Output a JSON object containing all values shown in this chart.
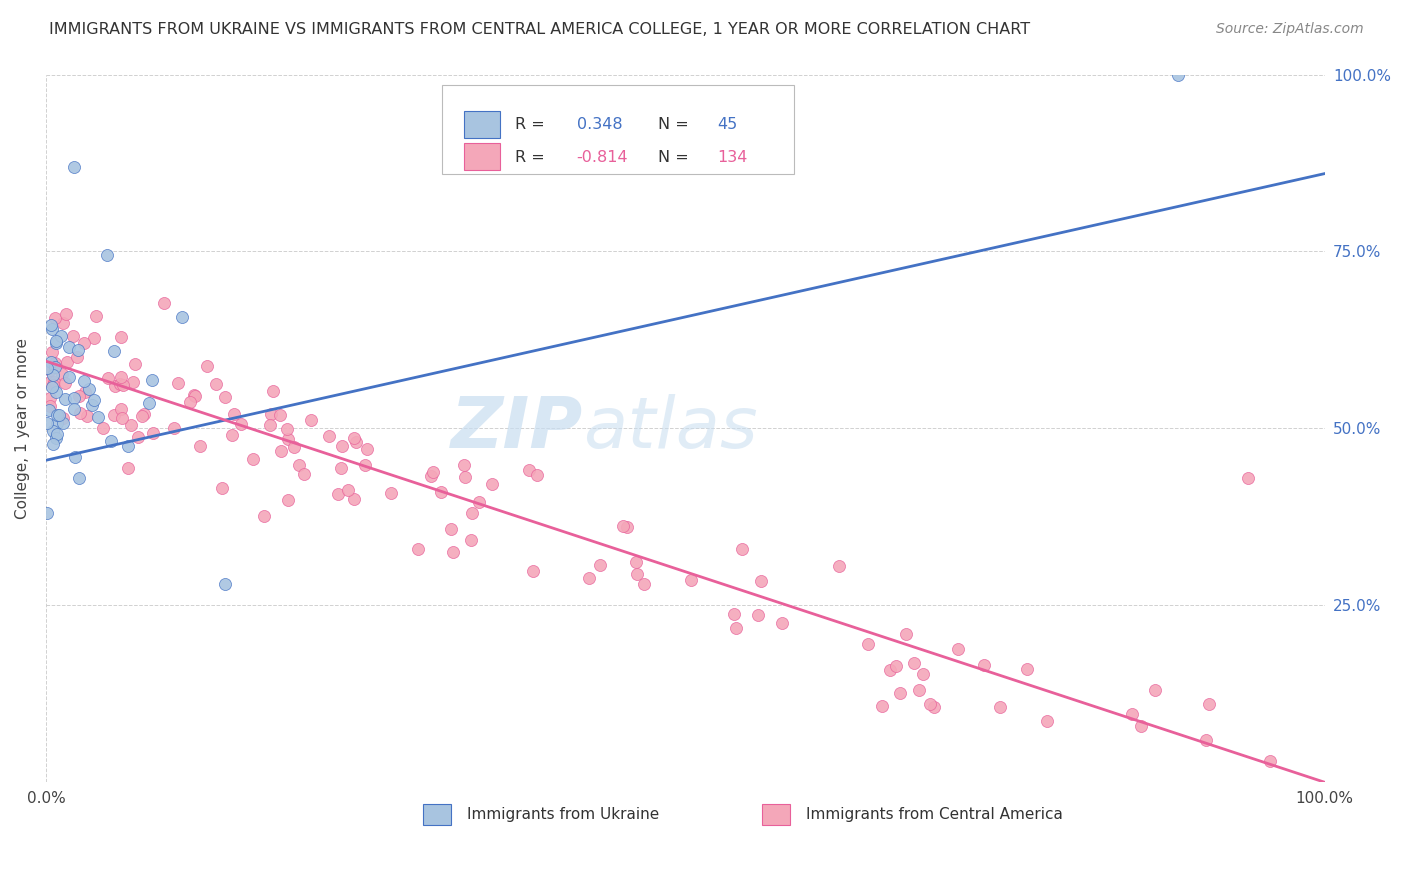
{
  "title": "IMMIGRANTS FROM UKRAINE VS IMMIGRANTS FROM CENTRAL AMERICA COLLEGE, 1 YEAR OR MORE CORRELATION CHART",
  "source": "Source: ZipAtlas.com",
  "ylabel": "College, 1 year or more",
  "ukraine_R": 0.348,
  "ukraine_N": 45,
  "central_america_R": -0.814,
  "central_america_N": 134,
  "ukraine_color": "#a8c4e0",
  "ukraine_line_color": "#4472c4",
  "central_america_color": "#f4a7b9",
  "central_america_line_color": "#e8609a",
  "legend_label_ukraine": "Immigrants from Ukraine",
  "legend_label_central": "Immigrants from Central America",
  "ukraine_line": [
    0.0,
    0.455,
    1.0,
    0.86
  ],
  "central_line": [
    0.0,
    0.595,
    1.0,
    0.0
  ],
  "right_tick_color": "#4472c4",
  "grid_color": "#cccccc",
  "watermark_color": "#c8ddf0",
  "title_fontsize": 11.5,
  "source_fontsize": 10,
  "axis_fontsize": 11,
  "ylabel_fontsize": 11
}
